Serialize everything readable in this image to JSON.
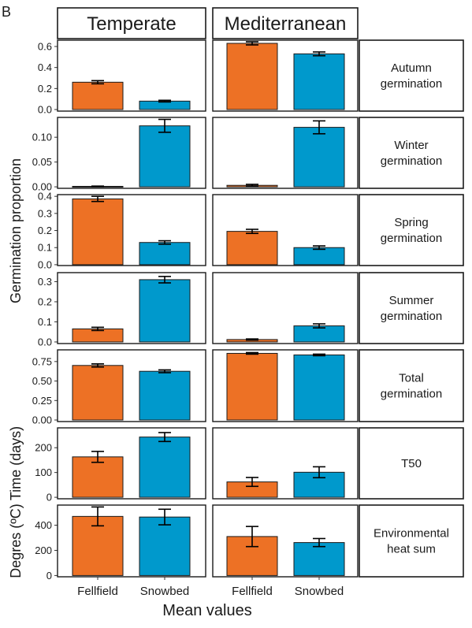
{
  "panel_letter": "B",
  "chart_data": {
    "type": "bar",
    "facet_columns": [
      "Temperate",
      "Mediterranean"
    ],
    "categories": [
      "Fellfield",
      "Snowbed"
    ],
    "colors": {
      "Fellfield": "#ED7125",
      "Snowbed": "#0099CC"
    },
    "xlabel": "Mean values",
    "ylabels": [
      {
        "text": "Germination proportion",
        "rows": [
          0,
          4
        ]
      },
      {
        "text": "Time (days)",
        "rows": [
          5,
          5
        ]
      },
      {
        "text": "Degres (ºC)",
        "rows": [
          6,
          6
        ]
      }
    ],
    "rows": [
      {
        "label_lines": [
          "Autumn",
          "germination"
        ],
        "ylim": [
          -0.015,
          0.66
        ],
        "yticks": [
          0.0,
          0.2,
          0.4,
          0.6
        ],
        "ytick_labels": [
          "0.0",
          "0.2",
          "0.4",
          "0.6"
        ],
        "panels": [
          {
            "values": [
              0.26,
              0.08
            ],
            "errors": [
              0.015,
              0.008
            ]
          },
          {
            "values": [
              0.63,
              0.53
            ],
            "errors": [
              0.015,
              0.018
            ]
          }
        ]
      },
      {
        "label_lines": [
          "Winter",
          "germination"
        ],
        "ylim": [
          -0.003,
          0.14
        ],
        "yticks": [
          0.0,
          0.05,
          0.1
        ],
        "ytick_labels": [
          "0.00",
          "0.05",
          "0.10"
        ],
        "panels": [
          {
            "values": [
              0.001,
              0.123
            ],
            "errors": [
              0.0005,
              0.013
            ]
          },
          {
            "values": [
              0.003,
              0.12
            ],
            "errors": [
              0.002,
              0.013
            ]
          }
        ]
      },
      {
        "label_lines": [
          "Spring",
          "germination"
        ],
        "ylim": [
          -0.005,
          0.41
        ],
        "yticks": [
          0.0,
          0.1,
          0.2,
          0.3,
          0.4
        ],
        "ytick_labels": [
          "0.0",
          "0.1",
          "0.2",
          "0.3",
          "0.4"
        ],
        "panels": [
          {
            "values": [
              0.385,
              0.13
            ],
            "errors": [
              0.015,
              0.01
            ]
          },
          {
            "values": [
              0.195,
              0.1
            ],
            "errors": [
              0.012,
              0.01
            ]
          }
        ]
      },
      {
        "label_lines": [
          "Summer",
          "germination"
        ],
        "ylim": [
          -0.008,
          0.345
        ],
        "yticks": [
          0.0,
          0.1,
          0.2,
          0.3
        ],
        "ytick_labels": [
          "0.0",
          "0.1",
          "0.2",
          "0.3"
        ],
        "panels": [
          {
            "values": [
              0.065,
              0.31
            ],
            "errors": [
              0.008,
              0.016
            ]
          },
          {
            "values": [
              0.012,
              0.08
            ],
            "errors": [
              0.003,
              0.01
            ]
          }
        ]
      },
      {
        "label_lines": [
          "Total",
          "germination"
        ],
        "ylim": [
          -0.02,
          0.9
        ],
        "yticks": [
          0.0,
          0.25,
          0.5,
          0.75
        ],
        "ytick_labels": [
          "0.00",
          "0.25",
          "0.50",
          "0.75"
        ],
        "panels": [
          {
            "values": [
              0.7,
              0.625
            ],
            "errors": [
              0.02,
              0.018
            ]
          },
          {
            "values": [
              0.855,
              0.835
            ],
            "errors": [
              0.01,
              0.01
            ]
          }
        ]
      },
      {
        "label_lines": [
          "T50"
        ],
        "ylim": [
          -6,
          280
        ],
        "yticks": [
          0,
          100,
          200
        ],
        "ytick_labels": [
          "0",
          "100",
          "200"
        ],
        "panels": [
          {
            "values": [
              163,
              243
            ],
            "errors": [
              22,
              18
            ]
          },
          {
            "values": [
              62,
              101
            ],
            "errors": [
              18,
              22
            ]
          }
        ]
      },
      {
        "label_lines": [
          "Environmental",
          "heat sum"
        ],
        "ylim": [
          -10,
          560
        ],
        "yticks": [
          0,
          200,
          400
        ],
        "ytick_labels": [
          "0",
          "200",
          "400"
        ],
        "panels": [
          {
            "values": [
              470,
              465
            ],
            "errors": [
              75,
              62
            ]
          },
          {
            "values": [
              310,
              262
            ],
            "errors": [
              80,
              32
            ]
          }
        ]
      }
    ]
  }
}
